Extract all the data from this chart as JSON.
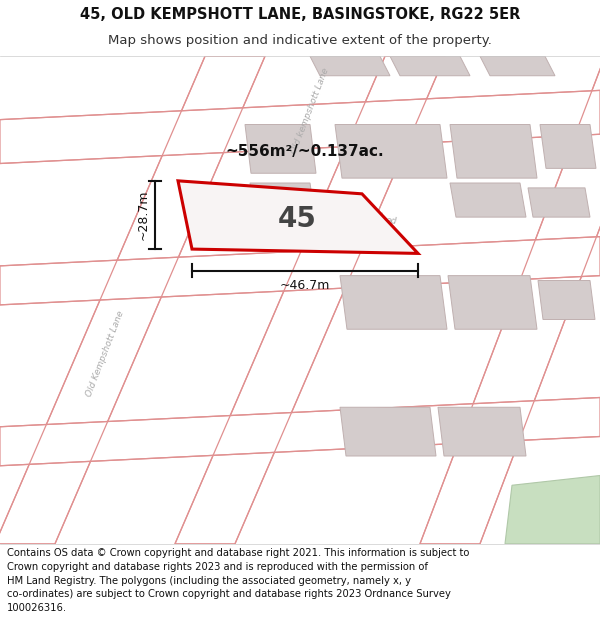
{
  "title_line1": "45, OLD KEMPSHOTT LANE, BASINGSTOKE, RG22 5ER",
  "title_line2": "Map shows position and indicative extent of the property.",
  "footer_text": "Contains OS data © Crown copyright and database right 2021. This information is subject to Crown copyright and database rights 2023 and is reproduced with the permission of HM Land Registry. The polygons (including the associated geometry, namely x, y co-ordinates) are subject to Crown copyright and database rights 2023 Ordnance Survey 100026316.",
  "area_label": "~556m²/~0.137ac.",
  "number_label": "45",
  "dim_width": "~46.7m",
  "dim_height": "~28.7m",
  "map_bg": "#f8f4f4",
  "road_fill": "#ffffff",
  "road_stroke": "#e09090",
  "building_fill": "#d4cccc",
  "building_stroke": "#c0b0b0",
  "plot_stroke": "#cc0000",
  "plot_fill": "#f8f4f4",
  "dim_color": "#111111",
  "street_color": "#aaaaaa",
  "title_fontsize": 10.5,
  "subtitle_fontsize": 9.5,
  "footer_fontsize": 7.2
}
